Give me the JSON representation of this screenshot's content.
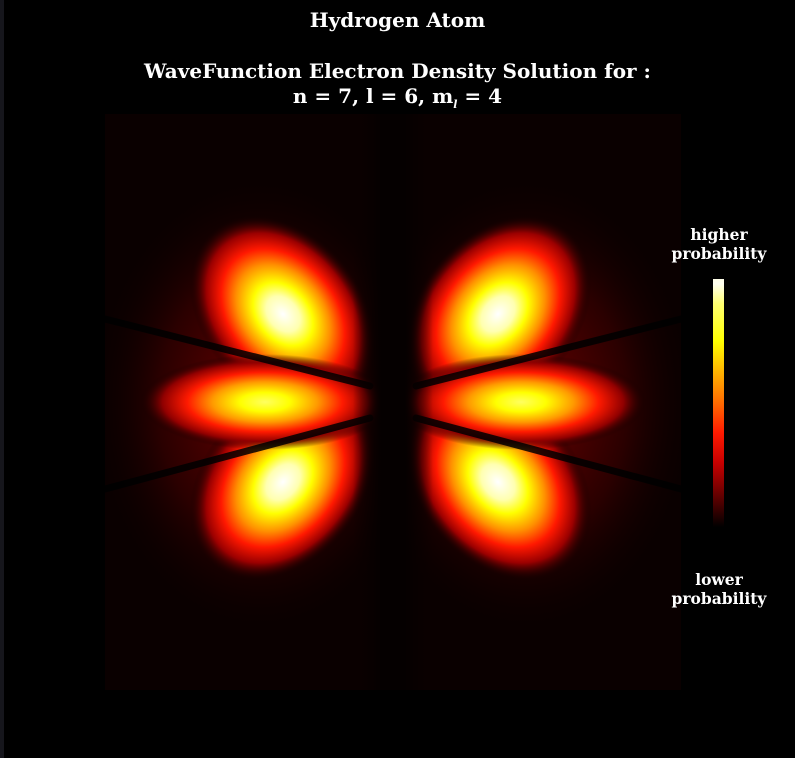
{
  "title": "Hydrogen Atom",
  "subtitle_prefix": "WaveFunction Electron Density Solution for :",
  "quantum": {
    "n_label": "n = 7, l = 6, m",
    "m_subscript": "l",
    "m_value": " = 4"
  },
  "colorbar": {
    "top_line1": "higher",
    "top_line2": "probability",
    "bottom_line1": "lower",
    "bottom_line2": "probability",
    "colors": [
      "#ffffff",
      "#ffff00",
      "#ff8000",
      "#ff0000",
      "#800000",
      "#000000"
    ]
  },
  "plot": {
    "background_color": "#0a0000",
    "colormap": "hot"
  }
}
